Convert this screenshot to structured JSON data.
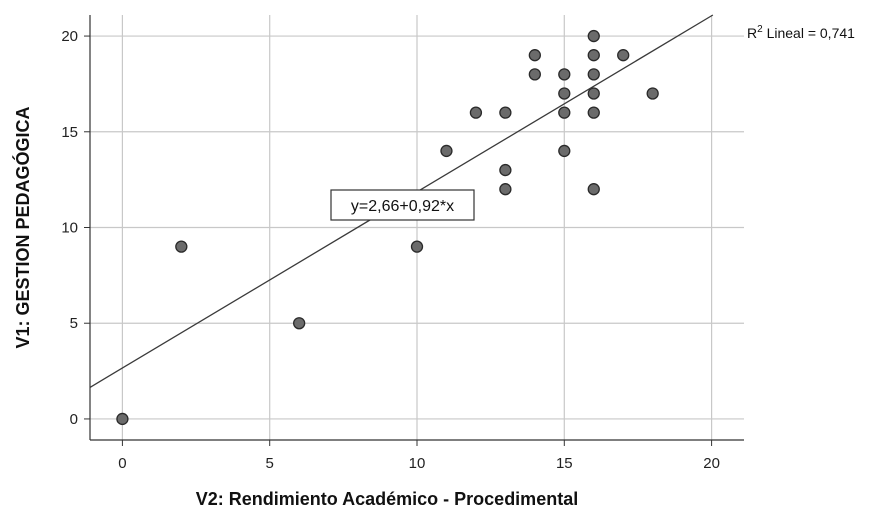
{
  "chart_data": {
    "type": "scatter",
    "xlabel": "V2: Rendimiento Académico - Procedimental",
    "ylabel": "V1: GESTION PEDAGÓGICA",
    "xlim": [
      -1.1,
      21.1
    ],
    "ylim": [
      -1.1,
      21.1
    ],
    "xticks": [
      "0",
      "5",
      "10",
      "15",
      "20"
    ],
    "yticks": [
      "0",
      "5",
      "10",
      "15",
      "20"
    ],
    "grid": true,
    "points": [
      {
        "x": 0,
        "y": 0
      },
      {
        "x": 2,
        "y": 9
      },
      {
        "x": 6,
        "y": 5
      },
      {
        "x": 10,
        "y": 9
      },
      {
        "x": 11,
        "y": 14
      },
      {
        "x": 12,
        "y": 16
      },
      {
        "x": 13,
        "y": 16
      },
      {
        "x": 13,
        "y": 13
      },
      {
        "x": 13,
        "y": 12
      },
      {
        "x": 14,
        "y": 19
      },
      {
        "x": 14,
        "y": 18
      },
      {
        "x": 15,
        "y": 18
      },
      {
        "x": 15,
        "y": 17
      },
      {
        "x": 15,
        "y": 16
      },
      {
        "x": 15,
        "y": 14
      },
      {
        "x": 16,
        "y": 20
      },
      {
        "x": 16,
        "y": 19
      },
      {
        "x": 16,
        "y": 18
      },
      {
        "x": 16,
        "y": 17
      },
      {
        "x": 16,
        "y": 16
      },
      {
        "x": 16,
        "y": 12
      },
      {
        "x": 17,
        "y": 19
      },
      {
        "x": 18,
        "y": 17
      }
    ],
    "fit_line": {
      "intercept": 2.66,
      "slope": 0.92,
      "label": "y=2,66+0,92*x"
    },
    "r2_prefix": "R",
    "r2_sup": "2",
    "r2_suffix": " Lineal = 0,741",
    "colors": {
      "point_fill": "#6b6b6b",
      "point_stroke": "#2a2a2a",
      "grid": "#c8c8c8",
      "line": "#3a3a3a"
    }
  }
}
